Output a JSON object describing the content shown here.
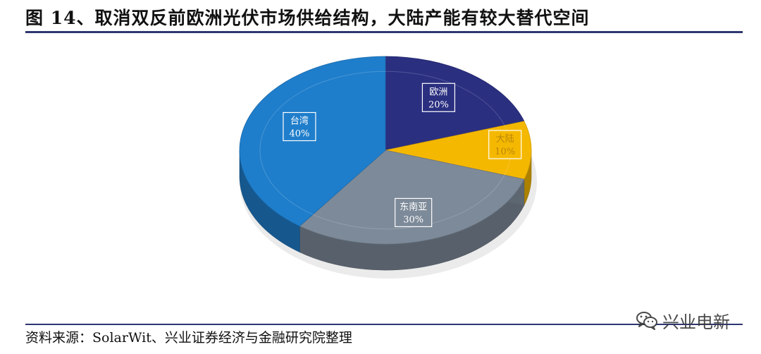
{
  "header": {
    "title": "图 14、取消双反前欧洲光伏市场供给结构，大陆产能有较大替代空间"
  },
  "footer": {
    "source": "资料来源：SolarWit、兴业证券经济与金融研究院整理"
  },
  "watermark": {
    "text": "兴业电新",
    "icon": "wechat-icon"
  },
  "chart_data": {
    "type": "pie",
    "title": "",
    "slices": [
      {
        "label": "欧洲",
        "value": 20,
        "value_label": "20%",
        "color": "#2b2f80"
      },
      {
        "label": "大陆",
        "value": 10,
        "value_label": "10%",
        "color": "#f5b800"
      },
      {
        "label": "东南亚",
        "value": 30,
        "value_label": "30%",
        "color": "#7d8a99"
      },
      {
        "label": "台湾",
        "value": 40,
        "value_label": "40%",
        "color": "#1f7ecb"
      }
    ]
  }
}
